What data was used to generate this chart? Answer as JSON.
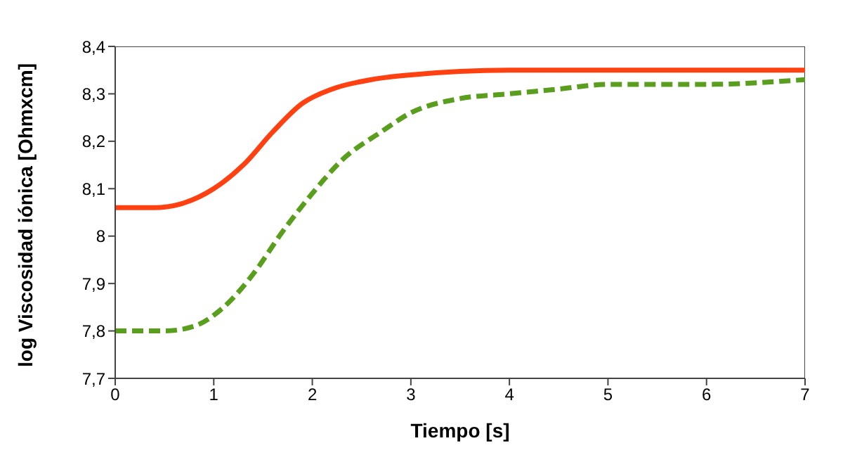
{
  "chart_data": {
    "type": "line",
    "xlabel": "Tiempo [s]",
    "ylabel": "log Viscosidad iónica [Ohmxcm]",
    "xlim": [
      0,
      7
    ],
    "xticks": [
      0,
      1,
      2,
      3,
      4,
      5,
      6,
      7
    ],
    "ylim": [
      7.7,
      8.4
    ],
    "yticks": [
      {
        "value": 7.7,
        "label": "7,7"
      },
      {
        "value": 7.8,
        "label": "7,8"
      },
      {
        "value": 7.9,
        "label": "7,9"
      },
      {
        "value": 8,
        "label": "8"
      },
      {
        "value": 8.1,
        "label": "8,1"
      },
      {
        "value": 8.2,
        "label": "8,2"
      },
      {
        "value": 8.3,
        "label": "8,3"
      },
      {
        "value": 8.4,
        "label": "8,4"
      }
    ],
    "grid": false,
    "marker": "none",
    "series": [
      {
        "color": "#ff4010",
        "line_style": "solid",
        "x": [
          0,
          0.4,
          0.7,
          1,
          1.3,
          1.6,
          1.9,
          2.2,
          2.6,
          3,
          4,
          5,
          7
        ],
        "values": [
          8.06,
          8.06,
          8.07,
          8.1,
          8.15,
          8.22,
          8.28,
          8.31,
          8.33,
          8.34,
          8.35,
          8.35,
          8.35
        ]
      },
      {
        "color": "#5a9e1e",
        "line_style": "dashed",
        "x": [
          0,
          0.5,
          0.8,
          1.1,
          1.4,
          1.7,
          2,
          2.3,
          2.7,
          3,
          3.5,
          4,
          4.5,
          5,
          6,
          7
        ],
        "values": [
          7.8,
          7.8,
          7.81,
          7.85,
          7.92,
          8.01,
          8.09,
          8.16,
          8.22,
          8.26,
          8.29,
          8.3,
          8.31,
          8.32,
          8.32,
          8.33
        ]
      }
    ]
  }
}
